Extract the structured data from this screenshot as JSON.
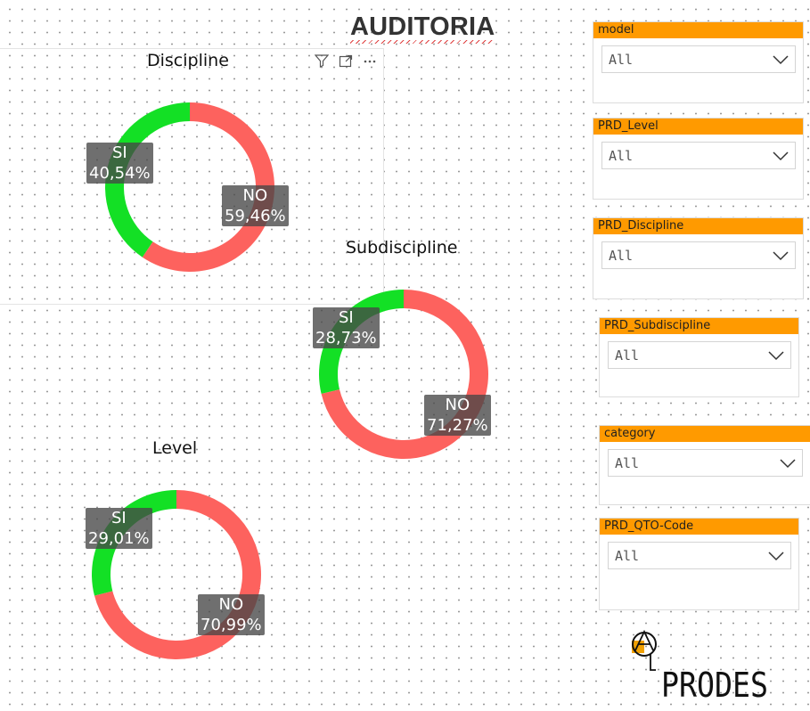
{
  "title": "AUDITORIA",
  "colors": {
    "si": "#13e025",
    "no": "#fd625e",
    "slicer_header": "#ff9a00"
  },
  "visual_header_icons": [
    "filter-icon",
    "focus-mode-icon",
    "more-options-icon"
  ],
  "charts": [
    {
      "id": "discipline",
      "title": "Discipline",
      "slices": [
        {
          "label": "SI",
          "pct": "40,54%"
        },
        {
          "label": "NO",
          "pct": "59,46%"
        }
      ]
    },
    {
      "id": "subdiscipline",
      "title": "Subdiscipline",
      "slices": [
        {
          "label": "SI",
          "pct": "28,73%"
        },
        {
          "label": "NO",
          "pct": "71,27%"
        }
      ]
    },
    {
      "id": "level",
      "title": "Level",
      "slices": [
        {
          "label": "SI",
          "pct": "29,01%"
        },
        {
          "label": "NO",
          "pct": "70,99%"
        }
      ]
    }
  ],
  "chart_data": [
    {
      "type": "pie",
      "title": "Discipline",
      "categories": [
        "SI",
        "NO"
      ],
      "values": [
        40.54,
        59.46
      ]
    },
    {
      "type": "pie",
      "title": "Subdiscipline",
      "categories": [
        "SI",
        "NO"
      ],
      "values": [
        28.73,
        71.27
      ]
    },
    {
      "type": "pie",
      "title": "Level",
      "categories": [
        "SI",
        "NO"
      ],
      "values": [
        29.01,
        70.99
      ]
    }
  ],
  "slicers": [
    {
      "header": "model",
      "value": "All"
    },
    {
      "header": "PRD_Level",
      "value": "All"
    },
    {
      "header": "PRD_Discipline",
      "value": "All"
    },
    {
      "header": "PRD_Subdiscipline",
      "value": "All"
    },
    {
      "header": "category",
      "value": "All"
    },
    {
      "header": "PRD_QTO-Code",
      "value": "All"
    }
  ],
  "logo_text": "PRODES"
}
